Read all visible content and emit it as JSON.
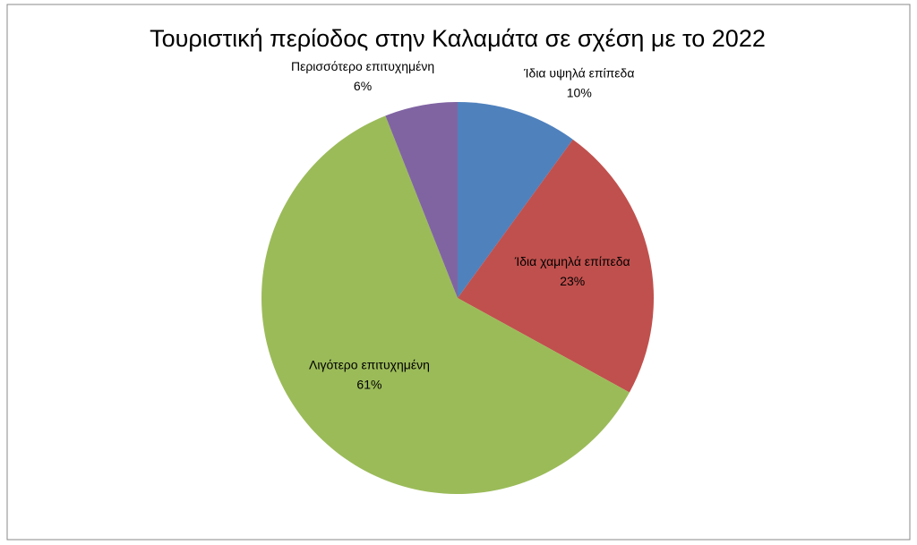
{
  "chart_data": {
    "type": "pie",
    "title": "Τουριστική περίοδος στην Καλαμάτα σε σχέση με το 2022",
    "categories": [
      "Ίδια υψηλά επίπεδα",
      "Ίδια χαμηλά επίπεδα",
      "Λιγότερο επιτυχημένη",
      "Περισσότερο επιτυχημένη"
    ],
    "values": [
      10,
      23,
      61,
      6
    ],
    "value_labels": [
      "10%",
      "23%",
      "61%",
      "6%"
    ],
    "colors": [
      "#4f81bd",
      "#c0504d",
      "#9bbb59",
      "#8064a2"
    ]
  }
}
